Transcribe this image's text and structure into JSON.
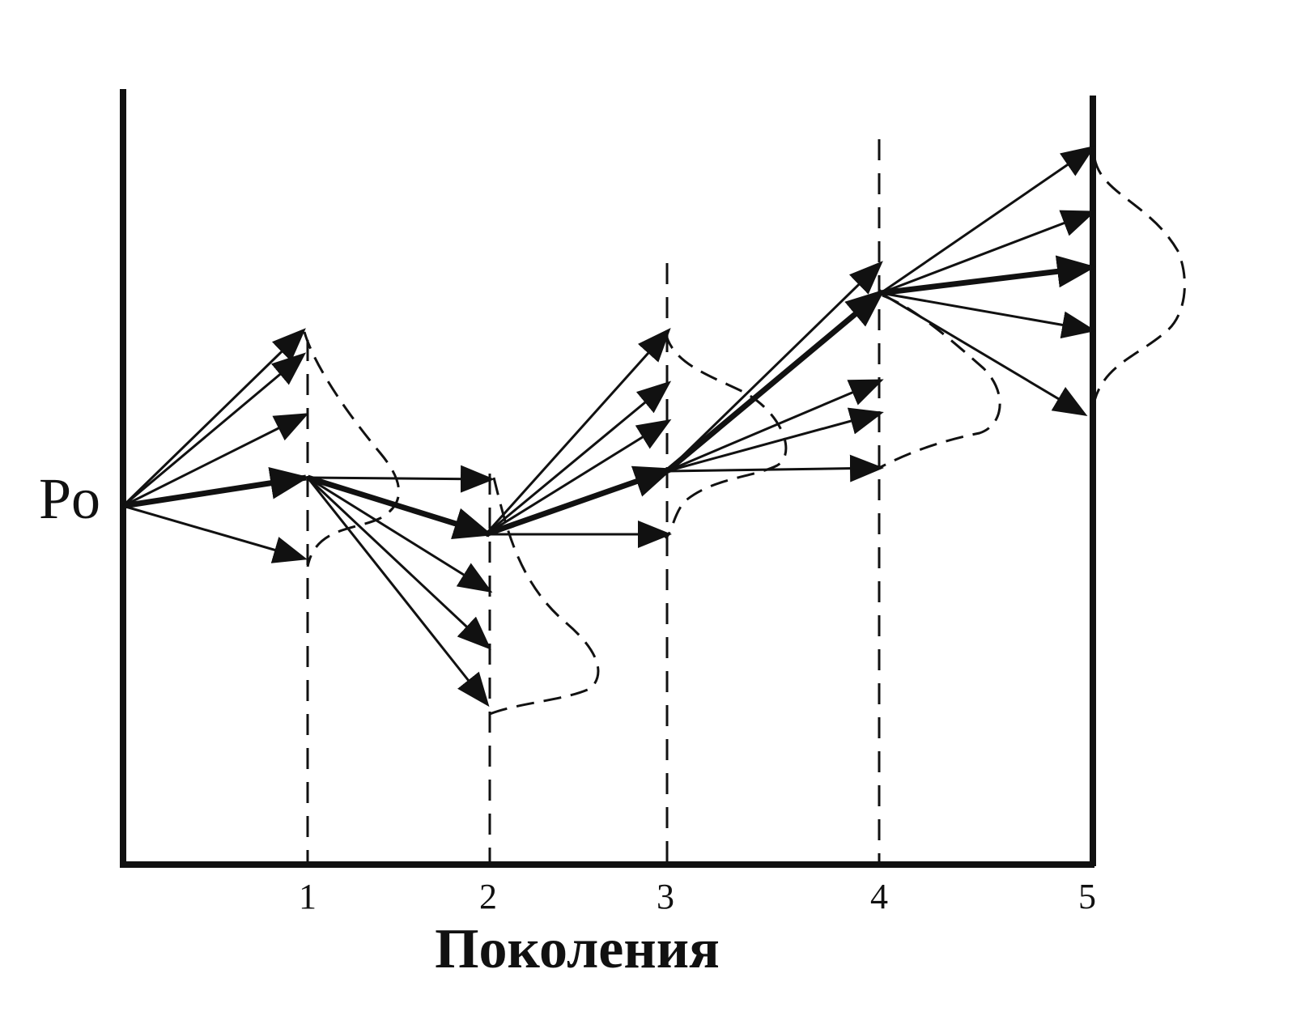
{
  "origin_label": "Po",
  "axis_title": "Поколения",
  "generation_ticks": [
    "1",
    "2",
    "3",
    "4",
    "5"
  ],
  "colors": {
    "ink": "#111111",
    "background": "#ffffff"
  }
}
